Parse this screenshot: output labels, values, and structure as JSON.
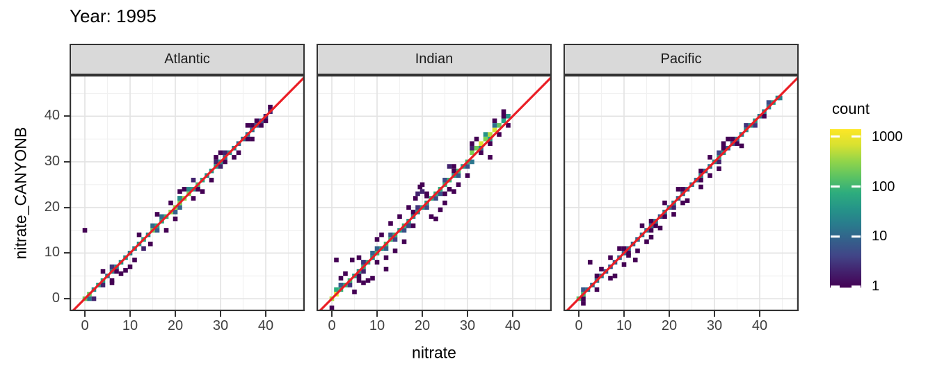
{
  "figure": {
    "title": "Year: 1995"
  },
  "chart_data": {
    "type": "heatmap",
    "subtype": "bin2d_scatter_density",
    "title": "Year: 1995",
    "xlabel": "nitrate",
    "ylabel": "nitrate_CANYONB",
    "facet_variable_values": [
      "Atlantic",
      "Indian",
      "Pacific"
    ],
    "x_ticks": [
      0,
      10,
      20,
      30,
      40
    ],
    "x_minor": [
      5,
      15,
      25,
      35,
      45
    ],
    "y_ticks": [
      0,
      10,
      20,
      30,
      40
    ],
    "y_minor": [
      5,
      15,
      25,
      35,
      45
    ],
    "xlim": [
      -3.4,
      48.6
    ],
    "ylim": [
      -2.7,
      49.0
    ],
    "grid": true,
    "reference_line": {
      "equation": "y = x",
      "color": "#EA1E25"
    },
    "legend": {
      "title": "count",
      "scale": "log10",
      "position": "right",
      "tick_values": [
        1000,
        100,
        10,
        1
      ],
      "tick_labels": [
        "1000",
        "100",
        "10",
        "1"
      ],
      "range": [
        1,
        1000
      ]
    },
    "colors": {
      "viridis_stops": [
        "#440154",
        "#414487",
        "#2a788e",
        "#22a884",
        "#7ad151",
        "#fde725"
      ],
      "strip_bg": "#D9D9D9",
      "panel_border": "#333333",
      "grid_major": "#E3E3E3",
      "grid_minor": "#F1F1F1",
      "axis_text": "#404040",
      "text": "#000000"
    },
    "facets": [
      {
        "name": "Atlantic",
        "seed": 5,
        "diag_range": [
          0,
          41
        ],
        "step": 1,
        "count_profile": [
          [
            0,
            1,
            160
          ],
          [
            2,
            4,
            45
          ],
          [
            5,
            8,
            28
          ],
          [
            9,
            11,
            30
          ],
          [
            12,
            13,
            70
          ],
          [
            14,
            14,
            40
          ],
          [
            15,
            18,
            120
          ],
          [
            19,
            23,
            260
          ],
          [
            24,
            26,
            80
          ],
          [
            27,
            29,
            40
          ],
          [
            30,
            33,
            25
          ],
          [
            34,
            37,
            12
          ],
          [
            38,
            39,
            6
          ],
          [
            40,
            41,
            4
          ]
        ],
        "band_offsets": [],
        "neighbor_prob": 0.6,
        "neighbor2_prob": 0.18,
        "extra_bins": [
          [
            0,
            15,
            1
          ],
          [
            8,
            5.5,
            1
          ],
          [
            9,
            6.2,
            1
          ],
          [
            10,
            7,
            1
          ],
          [
            13,
            11,
            2
          ],
          [
            14.5,
            12,
            1
          ],
          [
            18,
            15,
            1
          ],
          [
            11,
            8.5,
            1
          ],
          [
            16,
            18.5,
            1
          ],
          [
            12,
            14,
            1
          ],
          [
            20,
            17.5,
            1
          ],
          [
            24,
            26,
            2
          ],
          [
            6,
            3.5,
            1
          ],
          [
            4,
            6,
            1
          ],
          [
            29,
            31,
            1
          ],
          [
            33,
            31,
            1
          ],
          [
            36,
            38,
            1
          ],
          [
            21,
            23.5,
            1
          ],
          [
            26,
            23.5,
            1
          ],
          [
            2,
            0,
            2
          ]
        ]
      },
      {
        "name": "Indian",
        "seed": 9,
        "diag_range": [
          0,
          39
        ],
        "step": 1,
        "count_profile": [
          [
            0,
            1,
            650
          ],
          [
            2,
            5,
            70
          ],
          [
            6,
            9,
            50
          ],
          [
            10,
            13,
            80
          ],
          [
            14,
            17,
            60
          ],
          [
            18,
            21,
            45
          ],
          [
            22,
            25,
            55
          ],
          [
            26,
            29,
            90
          ],
          [
            30,
            32,
            160
          ],
          [
            33,
            36,
            450
          ],
          [
            37,
            37,
            150
          ],
          [
            38,
            39,
            45
          ]
        ],
        "band_offsets": [
          [
            31,
            39,
            1
          ]
        ],
        "neighbor_prob": 0.85,
        "neighbor2_prob": 0.4,
        "extra_bins": [
          [
            1,
            8.5,
            1
          ],
          [
            4.5,
            8.5,
            1
          ],
          [
            9,
            4.5,
            1
          ],
          [
            12,
            6.5,
            1
          ],
          [
            8,
            4,
            1
          ],
          [
            13,
            16.5,
            1
          ],
          [
            19,
            23,
            2
          ],
          [
            19.5,
            24.5,
            1
          ],
          [
            20,
            23.5,
            2
          ],
          [
            21,
            22.5,
            1
          ],
          [
            18.5,
            22,
            1
          ],
          [
            20,
            25,
            1
          ],
          [
            22,
            18,
            1
          ],
          [
            23,
            17.5,
            1
          ],
          [
            24,
            19.5,
            1
          ],
          [
            25,
            21,
            1
          ],
          [
            16,
            12.5,
            1
          ],
          [
            10,
            13,
            1
          ],
          [
            6,
            9,
            1
          ],
          [
            3,
            5.5,
            1
          ],
          [
            14,
            10.5,
            1
          ],
          [
            15,
            18,
            1
          ],
          [
            27,
            23.5,
            1
          ],
          [
            28,
            25,
            1
          ],
          [
            26,
            29,
            2
          ],
          [
            30,
            27,
            1
          ],
          [
            17,
            20,
            1
          ],
          [
            11,
            14,
            1
          ],
          [
            7,
            3.5,
            1
          ],
          [
            5,
            1.5,
            1
          ],
          [
            2,
            4.5,
            1
          ],
          [
            31,
            34,
            1
          ],
          [
            35,
            31,
            1
          ],
          [
            12,
            9,
            1
          ]
        ]
      },
      {
        "name": "Pacific",
        "seed": 3,
        "diag_range": [
          0,
          44
        ],
        "step": 1,
        "count_profile": [
          [
            0,
            1,
            110
          ],
          [
            2,
            5,
            14
          ],
          [
            6,
            9,
            8
          ],
          [
            10,
            14,
            10
          ],
          [
            15,
            19,
            12
          ],
          [
            20,
            24,
            15
          ],
          [
            25,
            29,
            18
          ],
          [
            30,
            32,
            45
          ],
          [
            33,
            36,
            14
          ],
          [
            37,
            39,
            35
          ],
          [
            40,
            42,
            20
          ],
          [
            43,
            44,
            40
          ]
        ],
        "band_offsets": [],
        "neighbor_prob": 0.5,
        "neighbor2_prob": 0.1,
        "extra_bins": [
          [
            2.5,
            8,
            1
          ],
          [
            11,
            9.5,
            1
          ],
          [
            12.5,
            8.5,
            1
          ],
          [
            13,
            10.5,
            1
          ],
          [
            15,
            12.5,
            1
          ],
          [
            16,
            13.5,
            1
          ],
          [
            7,
            4.5,
            1
          ],
          [
            8,
            5,
            1
          ],
          [
            18,
            15.5,
            1
          ],
          [
            21,
            18.5,
            1
          ],
          [
            24,
            21.5,
            1
          ],
          [
            27,
            24.5,
            1
          ],
          [
            31,
            28.5,
            1
          ],
          [
            36,
            33.5,
            1
          ],
          [
            5,
            6.5,
            1
          ],
          [
            9,
            11,
            1
          ],
          [
            14,
            16,
            1
          ],
          [
            22,
            24,
            1
          ],
          [
            33,
            35,
            1
          ],
          [
            4,
            2,
            1
          ],
          [
            19,
            21,
            1
          ],
          [
            29,
            31,
            1
          ],
          [
            10,
            7.5,
            1
          ],
          [
            44.5,
            44,
            20
          ]
        ]
      }
    ]
  }
}
